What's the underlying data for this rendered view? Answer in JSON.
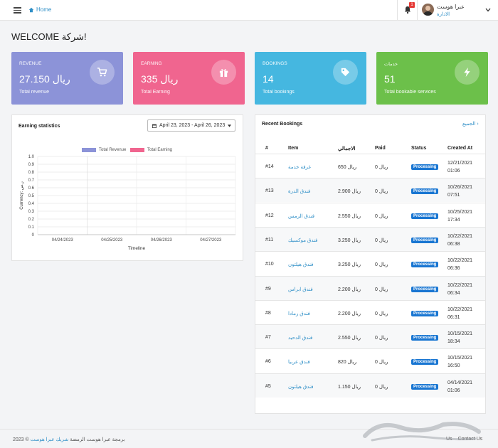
{
  "topbar": {
    "home_label": "Home",
    "notification_count": "1",
    "user_name": "عبرا هوست",
    "user_role": "الادارة"
  },
  "welcome": "WELCOME شركة!",
  "cards": [
    {
      "label": "REVENUE",
      "value": "27.150 ريال",
      "sub": "Total revenue",
      "color": "#8c93d8",
      "icon": "cart-icon"
    },
    {
      "label": "EARNING",
      "value": "335 ريال",
      "sub": "Total Earning",
      "color": "#f0658f",
      "icon": "gift-icon"
    },
    {
      "label": "BOOKINGS",
      "value": "14",
      "sub": "Total bookings",
      "color": "#45b7e0",
      "icon": "tag-icon"
    },
    {
      "label": "خدمات",
      "value": "51",
      "sub": "Total bookable services",
      "color": "#6cc04a",
      "icon": "bolt-icon"
    }
  ],
  "earning": {
    "title": "Earning statistics",
    "date_range": "April 23, 2023 - April 26, 2023"
  },
  "chart_data": {
    "type": "bar",
    "title": "",
    "categories": [
      "04/24/2023",
      "04/25/2023",
      "04/26/2023",
      "04/27/2023"
    ],
    "series": [
      {
        "name": "Total Revenue",
        "values": [
          0,
          0,
          0,
          0
        ],
        "color": "#8c93d8"
      },
      {
        "name": "Total Earning",
        "values": [
          0,
          0,
          0,
          0
        ],
        "color": "#f0658f"
      }
    ],
    "yticks": [
      "0",
      "0.1",
      "0.2",
      "0.3",
      "0.4",
      "0.5",
      "0.6",
      "0.7",
      "0.8",
      "0.9",
      "1.0"
    ],
    "ylim": [
      0,
      1
    ],
    "xlabel": "Timeline",
    "ylabel": "Currency: ر.س",
    "legend_position": "top",
    "grid": true
  },
  "bookings": {
    "title": "Recent Bookings",
    "view_all": "الجميع",
    "headers": [
      "#",
      "Item",
      "الاجمالي",
      "Paid",
      "Status",
      "Created At"
    ],
    "rows": [
      {
        "id": "#14",
        "item": "غرفة خدمة",
        "total": "ريال 650",
        "paid": "ريال 0",
        "status": "Processing",
        "date": "12/21/2021",
        "time": "01:06"
      },
      {
        "id": "#13",
        "item": "فندق الدرة",
        "total": "ريال 2.900",
        "paid": "ريال 0",
        "status": "Processing",
        "date": "10/26/2021",
        "time": "07:51"
      },
      {
        "id": "#12",
        "item": "فندق الرمس",
        "total": "ريال 2.550",
        "paid": "ريال 0",
        "status": "Processing",
        "date": "10/25/2021",
        "time": "17:34"
      },
      {
        "id": "#11",
        "item": "فندق موكسيك",
        "total": "ريال 3.250",
        "paid": "ريال 0",
        "status": "Processing",
        "date": "10/22/2021",
        "time": "06:38"
      },
      {
        "id": "#10",
        "item": "فندق هيلتون",
        "total": "ريال 3.250",
        "paid": "ريال 0",
        "status": "Processing",
        "date": "10/22/2021",
        "time": "06:36"
      },
      {
        "id": "#9",
        "item": "فندق ابراس",
        "total": "ريال 2.200",
        "paid": "ريال 0",
        "status": "Processing",
        "date": "10/22/2021",
        "time": "06:34"
      },
      {
        "id": "#8",
        "item": "فندق رمادا",
        "total": "ريال 2.200",
        "paid": "ريال 0",
        "status": "Processing",
        "date": "10/22/2021",
        "time": "06:31"
      },
      {
        "id": "#7",
        "item": "فندق الدحيد",
        "total": "ريال 2.550",
        "paid": "ريال 0",
        "status": "Processing",
        "date": "10/15/2021",
        "time": "18:34"
      },
      {
        "id": "#6",
        "item": "فندق عربيا",
        "total": "ريال 820",
        "paid": "ريال 0",
        "status": "Processing",
        "date": "10/15/2021",
        "time": "16:50"
      },
      {
        "id": "#5",
        "item": "فندق هيلتون",
        "total": "ريال 1.150",
        "paid": "ريال 0",
        "status": "Processing",
        "date": "04/14/2021",
        "time": "01:06"
      }
    ]
  },
  "footer": {
    "text": "2023 © برمجة عبرا هوست الرمضة",
    "link": "شريك عبرا هوست",
    "about": "Contact Us",
    "about2": "Us"
  },
  "colors": {
    "accent": "#2f8fc7",
    "badge": "#1976d2"
  }
}
